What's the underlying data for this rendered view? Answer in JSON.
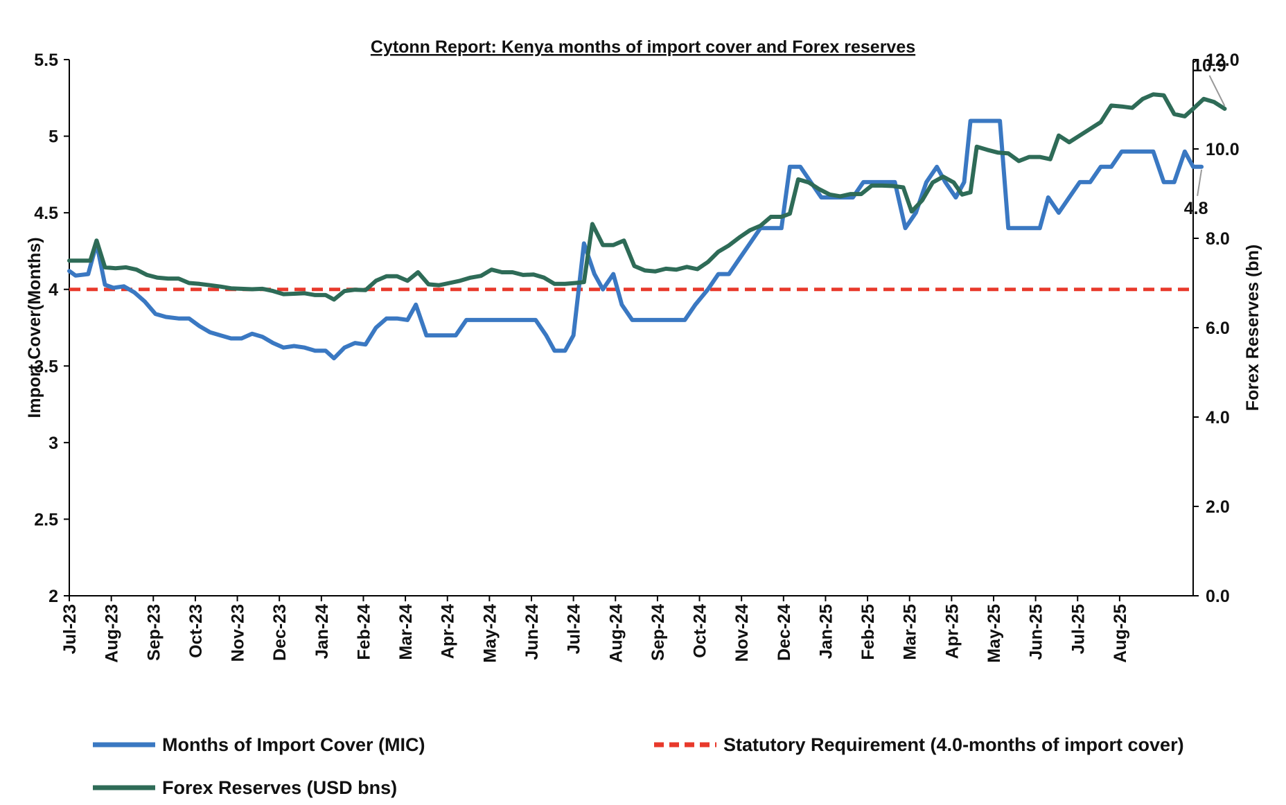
{
  "chart_data": {
    "type": "line",
    "title": "Cytonn Report: Kenya months of import cover and Forex reserves",
    "ylabel_left": "Import Cover(Months)",
    "ylabel_right": "Forex Reserves (bn)",
    "ylim_left": [
      2,
      5.5
    ],
    "yticks_left": [
      "2",
      "2.5",
      "3",
      "3.5",
      "4",
      "4.5",
      "5",
      "5.5"
    ],
    "ylim_right": [
      0,
      12
    ],
    "yticks_right": [
      "0.0",
      "2.0",
      "4.0",
      "6.0",
      "8.0",
      "10.0",
      "12.0"
    ],
    "x_tick_labels": [
      "Jul-23",
      "Aug-23",
      "Sep-23",
      "Oct-23",
      "Nov-23",
      "Dec-23",
      "Jan-24",
      "Feb-24",
      "Mar-24",
      "Apr-24",
      "May-24",
      "Jun-24",
      "Jul-24",
      "Aug-24",
      "Sep-24",
      "Oct-24",
      "Nov-24",
      "Dec-24",
      "Jan-25",
      "Feb-25",
      "Mar-25",
      "Apr-25",
      "May-25",
      "Jun-25",
      "Jul-25",
      "Aug-25"
    ],
    "x_range_months": [
      0,
      26.75
    ],
    "legend_position": "bottom",
    "series": [
      {
        "name": "Months of Import Cover (MIC)",
        "axis": "left",
        "color": "#3A78C2",
        "style": "solid",
        "points": [
          [
            0,
            4.12
          ],
          [
            0.15,
            4.09
          ],
          [
            0.45,
            4.1
          ],
          [
            0.65,
            4.3
          ],
          [
            0.85,
            4.03
          ],
          [
            1.05,
            4.01
          ],
          [
            1.3,
            4.02
          ],
          [
            1.55,
            3.98
          ],
          [
            1.8,
            3.92
          ],
          [
            2.05,
            3.84
          ],
          [
            2.3,
            3.82
          ],
          [
            2.6,
            3.81
          ],
          [
            2.85,
            3.81
          ],
          [
            3.1,
            3.76
          ],
          [
            3.35,
            3.72
          ],
          [
            3.6,
            3.7
          ],
          [
            3.85,
            3.68
          ],
          [
            4.1,
            3.68
          ],
          [
            4.35,
            3.71
          ],
          [
            4.6,
            3.69
          ],
          [
            4.85,
            3.65
          ],
          [
            5.1,
            3.62
          ],
          [
            5.35,
            3.63
          ],
          [
            5.6,
            3.62
          ],
          [
            5.85,
            3.6
          ],
          [
            6.1,
            3.6
          ],
          [
            6.3,
            3.55
          ],
          [
            6.55,
            3.62
          ],
          [
            6.8,
            3.65
          ],
          [
            7.05,
            3.64
          ],
          [
            7.3,
            3.75
          ],
          [
            7.55,
            3.81
          ],
          [
            7.8,
            3.81
          ],
          [
            8.05,
            3.8
          ],
          [
            8.25,
            3.9
          ],
          [
            8.5,
            3.7
          ],
          [
            8.75,
            3.7
          ],
          [
            9.0,
            3.7
          ],
          [
            9.2,
            3.7
          ],
          [
            9.45,
            3.8
          ],
          [
            9.7,
            3.8
          ],
          [
            9.95,
            3.8
          ],
          [
            10.2,
            3.8
          ],
          [
            10.45,
            3.8
          ],
          [
            10.7,
            3.8
          ],
          [
            10.95,
            3.8
          ],
          [
            11.1,
            3.8
          ],
          [
            11.35,
            3.7
          ],
          [
            11.55,
            3.6
          ],
          [
            11.8,
            3.6
          ],
          [
            12.0,
            3.7
          ],
          [
            12.25,
            4.3
          ],
          [
            12.5,
            4.1
          ],
          [
            12.7,
            4.0
          ],
          [
            12.95,
            4.1
          ],
          [
            13.15,
            3.9
          ],
          [
            13.4,
            3.8
          ],
          [
            13.65,
            3.8
          ],
          [
            13.9,
            3.8
          ],
          [
            14.15,
            3.8
          ],
          [
            14.4,
            3.8
          ],
          [
            14.65,
            3.8
          ],
          [
            14.9,
            3.9
          ],
          [
            15.2,
            4.0
          ],
          [
            15.45,
            4.1
          ],
          [
            15.7,
            4.1
          ],
          [
            15.95,
            4.2
          ],
          [
            16.2,
            4.3
          ],
          [
            16.45,
            4.4
          ],
          [
            16.7,
            4.4
          ],
          [
            16.95,
            4.4
          ],
          [
            17.15,
            4.8
          ],
          [
            17.4,
            4.8
          ],
          [
            17.65,
            4.7
          ],
          [
            17.9,
            4.6
          ],
          [
            18.15,
            4.6
          ],
          [
            18.4,
            4.6
          ],
          [
            18.65,
            4.6
          ],
          [
            18.9,
            4.7
          ],
          [
            19.15,
            4.7
          ],
          [
            19.4,
            4.7
          ],
          [
            19.65,
            4.7
          ],
          [
            19.9,
            4.4
          ],
          [
            20.15,
            4.5
          ],
          [
            20.4,
            4.7
          ],
          [
            20.65,
            4.8
          ],
          [
            20.85,
            4.7
          ],
          [
            21.1,
            4.6
          ],
          [
            21.3,
            4.7
          ],
          [
            21.45,
            5.1
          ],
          [
            21.7,
            5.1
          ],
          [
            21.95,
            5.1
          ],
          [
            22.15,
            5.1
          ],
          [
            22.35,
            4.4
          ],
          [
            22.6,
            4.4
          ],
          [
            22.85,
            4.4
          ],
          [
            23.1,
            4.4
          ],
          [
            23.3,
            4.6
          ],
          [
            23.55,
            4.5
          ],
          [
            23.8,
            4.6
          ],
          [
            24.05,
            4.7
          ],
          [
            24.3,
            4.7
          ],
          [
            24.55,
            4.8
          ],
          [
            24.8,
            4.8
          ],
          [
            25.05,
            4.9
          ],
          [
            25.3,
            4.9
          ],
          [
            25.55,
            4.9
          ],
          [
            25.8,
            4.9
          ],
          [
            26.05,
            4.7
          ],
          [
            26.3,
            4.7
          ],
          [
            26.55,
            4.9
          ],
          [
            26.75,
            4.8
          ],
          [
            26.95,
            4.8
          ]
        ]
      },
      {
        "name": "Forex Reserves (USD bns)",
        "axis": "right",
        "color": "#2E6B57",
        "style": "solid",
        "points": [
          [
            0,
            7.5
          ],
          [
            0.25,
            7.5
          ],
          [
            0.5,
            7.5
          ],
          [
            0.65,
            7.95
          ],
          [
            0.85,
            7.35
          ],
          [
            1.1,
            7.33
          ],
          [
            1.35,
            7.35
          ],
          [
            1.6,
            7.3
          ],
          [
            1.85,
            7.18
          ],
          [
            2.1,
            7.12
          ],
          [
            2.35,
            7.1
          ],
          [
            2.6,
            7.1
          ],
          [
            2.85,
            7.0
          ],
          [
            3.1,
            6.98
          ],
          [
            3.35,
            6.95
          ],
          [
            3.6,
            6.92
          ],
          [
            3.85,
            6.88
          ],
          [
            4.1,
            6.87
          ],
          [
            4.35,
            6.86
          ],
          [
            4.6,
            6.87
          ],
          [
            4.85,
            6.82
          ],
          [
            5.1,
            6.75
          ],
          [
            5.35,
            6.76
          ],
          [
            5.6,
            6.77
          ],
          [
            5.85,
            6.73
          ],
          [
            6.1,
            6.73
          ],
          [
            6.3,
            6.63
          ],
          [
            6.55,
            6.82
          ],
          [
            6.8,
            6.85
          ],
          [
            7.05,
            6.84
          ],
          [
            7.3,
            7.05
          ],
          [
            7.55,
            7.15
          ],
          [
            7.8,
            7.15
          ],
          [
            8.05,
            7.05
          ],
          [
            8.3,
            7.24
          ],
          [
            8.55,
            6.97
          ],
          [
            8.8,
            6.95
          ],
          [
            9.05,
            7.0
          ],
          [
            9.3,
            7.05
          ],
          [
            9.55,
            7.12
          ],
          [
            9.8,
            7.16
          ],
          [
            10.05,
            7.3
          ],
          [
            10.3,
            7.24
          ],
          [
            10.55,
            7.24
          ],
          [
            10.8,
            7.18
          ],
          [
            11.05,
            7.19
          ],
          [
            11.3,
            7.12
          ],
          [
            11.55,
            6.98
          ],
          [
            11.8,
            6.98
          ],
          [
            12.05,
            7.0
          ],
          [
            12.25,
            7.02
          ],
          [
            12.45,
            8.32
          ],
          [
            12.7,
            7.85
          ],
          [
            12.95,
            7.85
          ],
          [
            13.2,
            7.95
          ],
          [
            13.45,
            7.38
          ],
          [
            13.7,
            7.28
          ],
          [
            13.95,
            7.26
          ],
          [
            14.2,
            7.32
          ],
          [
            14.45,
            7.3
          ],
          [
            14.7,
            7.36
          ],
          [
            14.95,
            7.31
          ],
          [
            15.2,
            7.47
          ],
          [
            15.45,
            7.7
          ],
          [
            15.7,
            7.84
          ],
          [
            15.95,
            8.02
          ],
          [
            16.2,
            8.18
          ],
          [
            16.45,
            8.28
          ],
          [
            16.7,
            8.48
          ],
          [
            16.95,
            8.48
          ],
          [
            17.15,
            8.55
          ],
          [
            17.35,
            9.32
          ],
          [
            17.6,
            9.25
          ],
          [
            17.85,
            9.1
          ],
          [
            18.1,
            8.98
          ],
          [
            18.35,
            8.94
          ],
          [
            18.6,
            8.99
          ],
          [
            18.85,
            8.99
          ],
          [
            19.1,
            9.18
          ],
          [
            19.35,
            9.18
          ],
          [
            19.6,
            9.17
          ],
          [
            19.85,
            9.14
          ],
          [
            20.05,
            8.6
          ],
          [
            20.3,
            8.85
          ],
          [
            20.55,
            9.25
          ],
          [
            20.8,
            9.38
          ],
          [
            21.05,
            9.25
          ],
          [
            21.25,
            8.98
          ],
          [
            21.45,
            9.03
          ],
          [
            21.6,
            10.05
          ],
          [
            21.85,
            9.98
          ],
          [
            22.1,
            9.92
          ],
          [
            22.35,
            9.9
          ],
          [
            22.6,
            9.73
          ],
          [
            22.85,
            9.82
          ],
          [
            23.1,
            9.82
          ],
          [
            23.35,
            9.77
          ],
          [
            23.55,
            10.3
          ],
          [
            23.8,
            10.15
          ],
          [
            24.05,
            10.3
          ],
          [
            24.3,
            10.45
          ],
          [
            24.55,
            10.6
          ],
          [
            24.8,
            10.97
          ],
          [
            25.05,
            10.95
          ],
          [
            25.3,
            10.92
          ],
          [
            25.55,
            11.12
          ],
          [
            25.8,
            11.22
          ],
          [
            26.05,
            11.2
          ],
          [
            26.3,
            10.78
          ],
          [
            26.55,
            10.73
          ],
          [
            26.75,
            10.9
          ],
          [
            27.0,
            11.12
          ],
          [
            27.25,
            11.05
          ],
          [
            27.5,
            10.9
          ]
        ]
      },
      {
        "name": "Statutory Requirement (4.0-months of import cover)",
        "axis": "left",
        "color": "#E8392B",
        "style": "dashed",
        "value": 4.0
      }
    ],
    "annotations": [
      {
        "text": "10.9",
        "series": "Forex Reserves (USD bns)"
      },
      {
        "text": "4.8",
        "series": "Months of Import Cover (MIC)"
      }
    ]
  }
}
